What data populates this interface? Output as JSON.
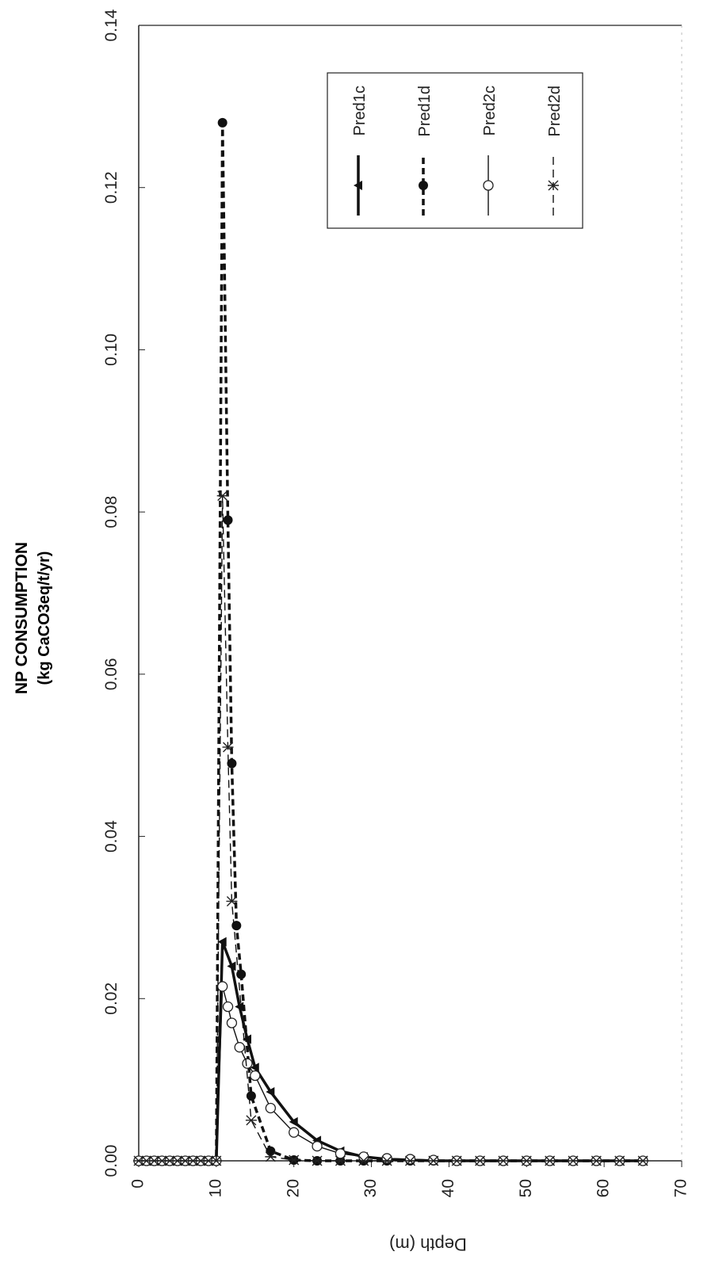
{
  "chart_data": {
    "type": "line",
    "orientation": "rotated-90-ccw",
    "title": "NP CONSUMPTION",
    "subtitle": "(kg CaCO3eq/t/yr)",
    "xlabel": "Depth (m)",
    "xlim": [
      0,
      70
    ],
    "ylim": [
      0,
      0.14
    ],
    "x_ticks": [
      "0",
      "10",
      "20",
      "30",
      "40",
      "50",
      "60",
      "70"
    ],
    "y_ticks": [
      "0.00",
      "0.02",
      "0.04",
      "0.06",
      "0.08",
      "0.10",
      "0.12",
      "0.14"
    ],
    "grid": false,
    "legend_position": "upper-right",
    "series": [
      {
        "name": "Pred1c",
        "marker": "triangle",
        "line": "solid",
        "line_weight": "heavy",
        "x": [
          0,
          1,
          2,
          3,
          4,
          5,
          6,
          7,
          8,
          9,
          10,
          10.8,
          12,
          13,
          14,
          15,
          17,
          20,
          23,
          26,
          29,
          32,
          35,
          38,
          41,
          44,
          47,
          50,
          53,
          56,
          59,
          62,
          65
        ],
        "values": [
          0,
          0,
          0,
          0,
          0,
          0,
          0,
          0,
          0,
          0,
          0,
          0.027,
          0.024,
          0.019,
          0.015,
          0.0115,
          0.0085,
          0.0048,
          0.0025,
          0.0012,
          0.0005,
          0.0002,
          0.0001,
          0,
          0,
          0,
          0,
          0,
          0,
          0,
          0,
          0,
          0
        ]
      },
      {
        "name": "Pred1d",
        "marker": "filled-circle",
        "line": "dashed",
        "line_weight": "heavy",
        "x": [
          0,
          1,
          2,
          3,
          4,
          5,
          6,
          7,
          8,
          9,
          10,
          10.8,
          11.5,
          12,
          12.6,
          13.2,
          14.5,
          17,
          20,
          23,
          26,
          29,
          32,
          35,
          38,
          41,
          44,
          47,
          50,
          53,
          56,
          59,
          62,
          65
        ],
        "values": [
          0,
          0,
          0,
          0,
          0,
          0,
          0,
          0,
          0,
          0,
          0,
          0.128,
          0.079,
          0.049,
          0.029,
          0.023,
          0.008,
          0.0012,
          0.0001,
          0,
          0,
          0,
          0,
          0,
          0,
          0,
          0,
          0,
          0,
          0,
          0,
          0,
          0,
          0
        ]
      },
      {
        "name": "Pred2c",
        "marker": "open-circle",
        "line": "solid",
        "line_weight": "thin",
        "x": [
          0,
          1,
          2,
          3,
          4,
          5,
          6,
          7,
          8,
          9,
          10,
          10.8,
          11.5,
          12,
          13,
          14,
          15,
          17,
          20,
          23,
          26,
          29,
          32,
          35,
          38,
          41,
          44,
          47,
          50,
          53,
          56,
          59,
          62,
          65
        ],
        "values": [
          0,
          0,
          0,
          0,
          0,
          0,
          0,
          0,
          0,
          0,
          0,
          0.0215,
          0.019,
          0.017,
          0.014,
          0.012,
          0.0105,
          0.0065,
          0.0035,
          0.0018,
          0.0009,
          0.0005,
          0.0003,
          0.0002,
          0.0001,
          0,
          0,
          0,
          0,
          0,
          0,
          0,
          0,
          0
        ]
      },
      {
        "name": "Pred2d",
        "marker": "x-star",
        "line": "dashed",
        "line_weight": "thin",
        "x": [
          0,
          1,
          2,
          3,
          4,
          5,
          6,
          7,
          8,
          9,
          10,
          10.8,
          11.5,
          12,
          14.5,
          17,
          20,
          23,
          26,
          29,
          32,
          35,
          38,
          41,
          44,
          47,
          50,
          53,
          56,
          59,
          62,
          65
        ],
        "values": [
          0,
          0,
          0,
          0,
          0,
          0,
          0,
          0,
          0,
          0,
          0,
          0.082,
          0.051,
          0.032,
          0.005,
          0.0005,
          0.0001,
          0,
          0,
          0,
          0,
          0,
          0,
          0,
          0,
          0,
          0,
          0,
          0,
          0,
          0,
          0
        ]
      }
    ]
  }
}
